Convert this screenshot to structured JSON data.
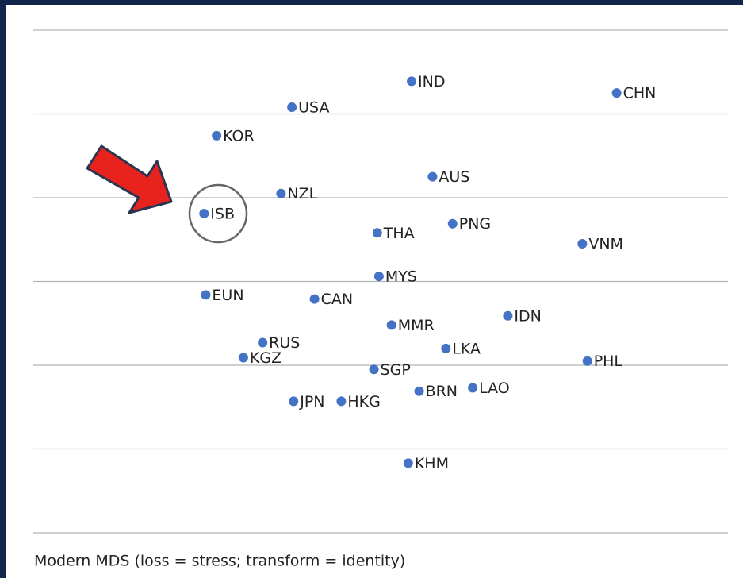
{
  "chart_data": {
    "type": "scatter",
    "caption": "Modern MDS (loss = stress; transform = identity)",
    "color": "#4472c4",
    "grid": true,
    "xlim": [
      -4.15,
      4.15
    ],
    "ylim": [
      -3,
      3
    ],
    "yticks": [
      -3,
      -2,
      -1,
      0,
      1,
      2,
      3
    ],
    "series": [
      {
        "name": "Countries",
        "color": "#4472c4",
        "labels": [
          "IND",
          "CHN",
          "USA",
          "KOR",
          "AUS",
          "NZL",
          "ISB",
          "PNG",
          "THA",
          "VNM",
          "MYS",
          "EUN",
          "CAN",
          "IDN",
          "MMR",
          "RUS",
          "LKA",
          "KGZ",
          "PHL",
          "SGP",
          "LAO",
          "BRN",
          "JPN",
          "HKG",
          "KHM"
        ],
        "x": [
          0.37,
          2.82,
          -1.06,
          -1.96,
          0.62,
          -1.19,
          -2.11,
          0.86,
          -0.04,
          2.41,
          -0.02,
          -2.09,
          -0.79,
          1.52,
          0.13,
          -1.41,
          0.78,
          -1.64,
          2.47,
          -0.08,
          1.1,
          0.46,
          -1.04,
          -0.47,
          0.33
        ],
        "values": [
          2.39,
          2.25,
          2.08,
          1.74,
          1.25,
          1.05,
          0.81,
          0.69,
          0.58,
          0.45,
          0.06,
          -0.16,
          -0.21,
          -0.41,
          -0.52,
          -0.73,
          -0.8,
          -0.91,
          -0.95,
          -1.05,
          -1.27,
          -1.31,
          -1.43,
          -1.43,
          -2.17
        ]
      }
    ]
  }
}
